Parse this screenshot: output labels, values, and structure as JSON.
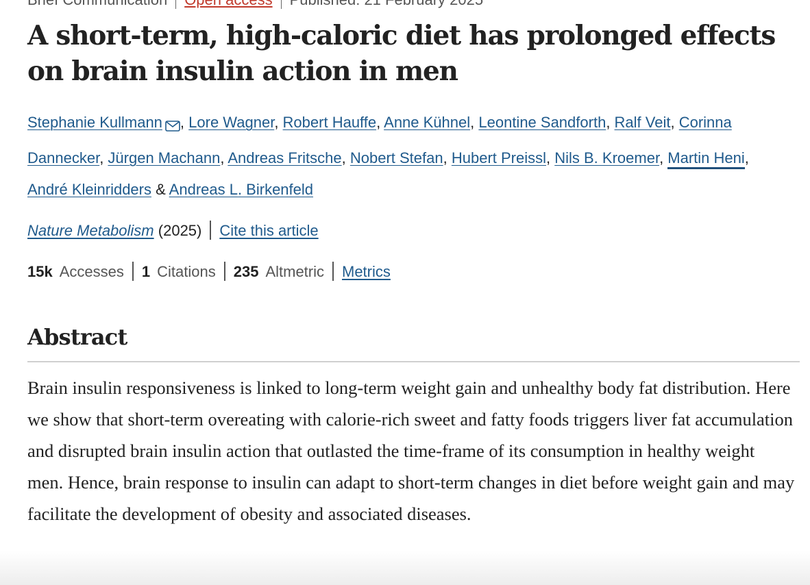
{
  "header": {
    "article_type": "Brief Communication",
    "access": "Open access",
    "published": "Published: 21 February 2025"
  },
  "title": "A short-term, high-caloric diet has prolonged effects on brain insulin action in men",
  "authors": [
    {
      "name": "Stephanie Kullmann",
      "has_mail_icon": true
    },
    {
      "name": "Lore Wagner"
    },
    {
      "name": "Robert Hauffe"
    },
    {
      "name": "Anne Kühnel"
    },
    {
      "name": "Leontine Sandforth"
    },
    {
      "name": "Ralf Veit"
    },
    {
      "name": "Corinna Dannecker"
    },
    {
      "name": "Jürgen Machann"
    },
    {
      "name": "Andreas Fritsche"
    },
    {
      "name": "Nobert Stefan"
    },
    {
      "name": "Hubert Preissl"
    },
    {
      "name": "Nils B. Kroemer"
    },
    {
      "name": "Martin Heni"
    },
    {
      "name": "André Kleinridders"
    },
    {
      "name": "Andreas L. Birkenfeld"
    }
  ],
  "authors_separator": ", ",
  "authors_last_joiner": " & ",
  "journal": {
    "name": "Nature Metabolism",
    "year": "(2025)",
    "cite_label": "Cite this article"
  },
  "metrics": {
    "accesses_value": "15k",
    "accesses_label": "Accesses",
    "citations_value": "1",
    "citations_label": "Citations",
    "altmetric_value": "235",
    "altmetric_label": "Altmetric",
    "metrics_link": "Metrics"
  },
  "abstract": {
    "heading": "Abstract",
    "body": "Brain insulin responsiveness is linked to long-term weight gain and unhealthy body fat distribution. Here we show that short-term overeating with calorie-rich sweet and fatty foods triggers liver fat accumulation and disrupted brain insulin action that outlasted the time-frame of its consumption in healthy weight men. Hence, brain response to insulin can adapt to short-term changes in diet before weight gain and may facilitate the development of obesity and associated diseases."
  },
  "colors": {
    "link": "#1f5a8c",
    "open_access": "#c0392b",
    "text": "#222222",
    "muted": "#555555"
  },
  "icons": {
    "mail": "mail-icon"
  }
}
